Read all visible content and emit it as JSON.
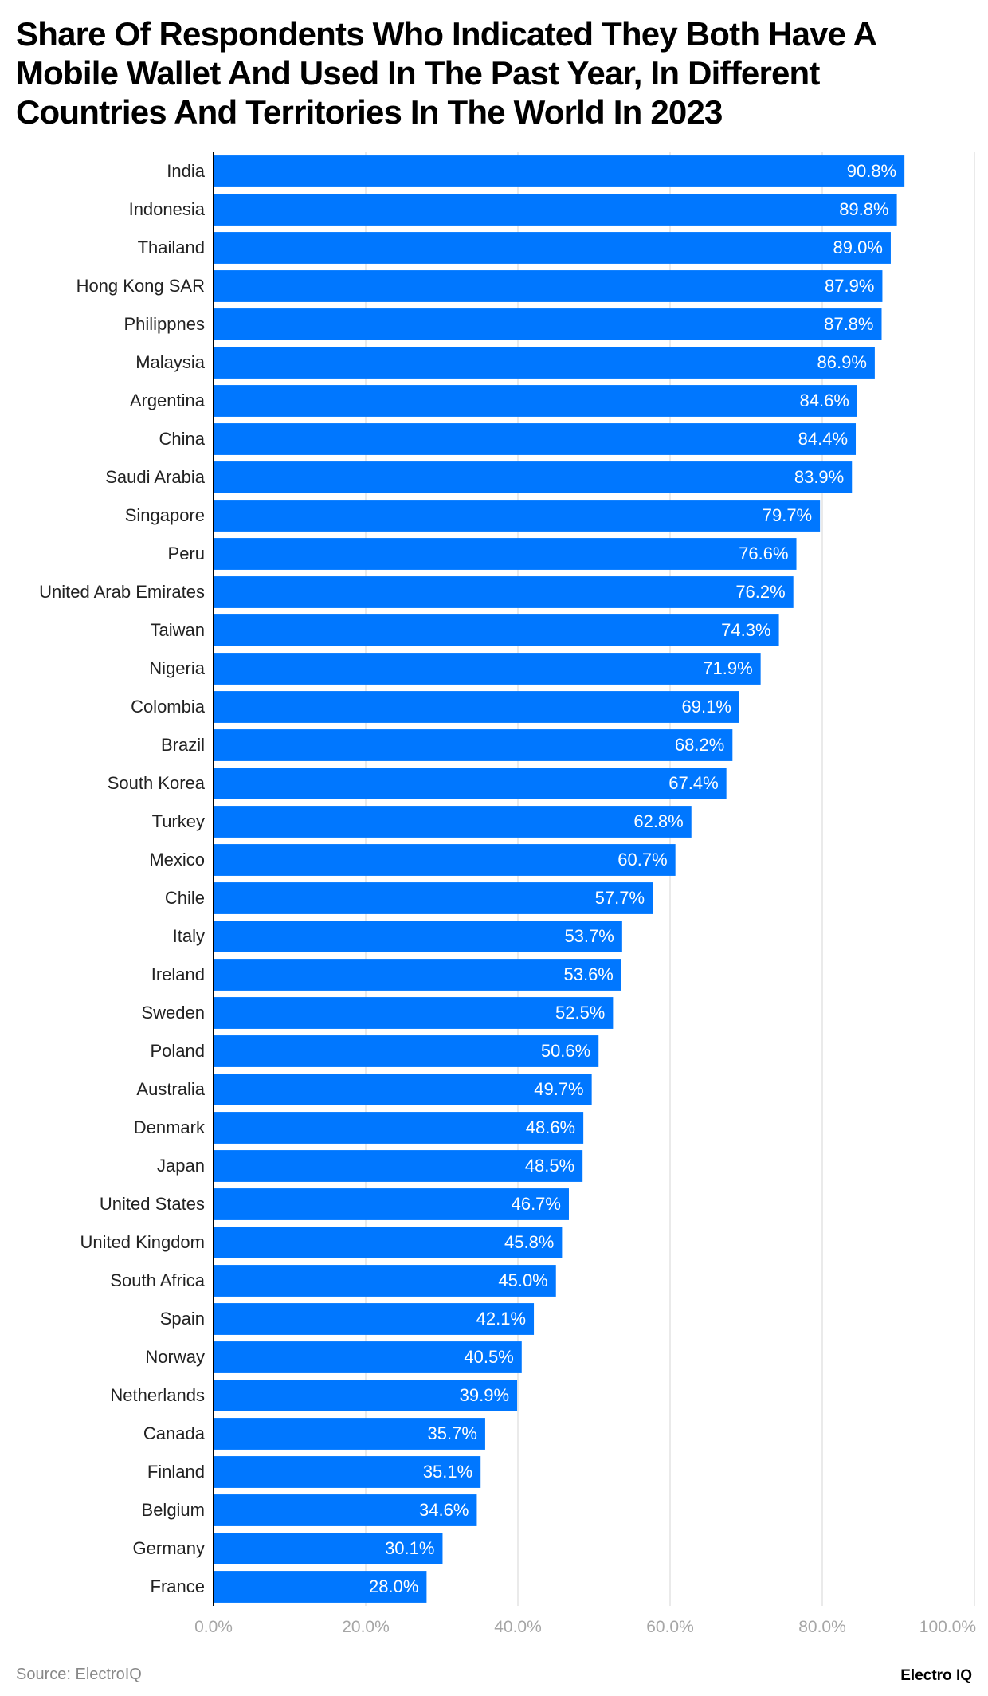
{
  "chart_data": {
    "type": "bar",
    "orientation": "horizontal",
    "title": "Share Of Respondents Who Indicated They Both Have A Mobile Wallet And Used In The Past Year, In Different Countries And Territories In The World In 2023",
    "categories": [
      "India",
      "Indonesia",
      "Thailand",
      "Hong Kong SAR",
      "Philippnes",
      "Malaysia",
      "Argentina",
      "China",
      "Saudi Arabia",
      "Singapore",
      "Peru",
      "United Arab Emirates",
      "Taiwan",
      "Nigeria",
      "Colombia",
      "Brazil",
      "South Korea",
      "Turkey",
      "Mexico",
      "Chile",
      "Italy",
      "Ireland",
      "Sweden",
      "Poland",
      "Australia",
      "Denmark",
      "Japan",
      "United States",
      "United Kingdom",
      "South Africa",
      "Spain",
      "Norway",
      "Netherlands",
      "Canada",
      "Finland",
      "Belgium",
      "Germany",
      "France"
    ],
    "values": [
      90.8,
      89.8,
      89.0,
      87.9,
      87.8,
      86.9,
      84.6,
      84.4,
      83.9,
      79.7,
      76.6,
      76.2,
      74.3,
      71.9,
      69.1,
      68.2,
      67.4,
      62.8,
      60.7,
      57.7,
      53.7,
      53.6,
      52.5,
      50.6,
      49.7,
      48.6,
      48.5,
      46.7,
      45.8,
      45.0,
      42.1,
      40.5,
      39.9,
      35.7,
      35.1,
      34.6,
      30.1,
      28.0
    ],
    "xlim": [
      0,
      100
    ],
    "xticks": [
      "0.0%",
      "20.0%",
      "40.0%",
      "60.0%",
      "80.0%",
      "100.0%"
    ],
    "value_format": "percent, 1 decimal",
    "grid": "vertical",
    "bar_color": "#0077FF",
    "legend": "none"
  },
  "footer": {
    "source": "Source: ElectroIQ",
    "brand": "Electro IQ"
  }
}
